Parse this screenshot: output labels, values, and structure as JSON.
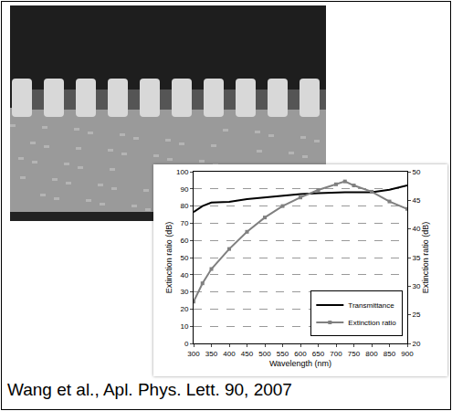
{
  "chart_data": {
    "type": "line",
    "xlabel": "Wavelength (nm)",
    "ylabel": "Extinction ratio (dB)",
    "y2label": "Extinction ratio (dB)",
    "xlim": [
      300,
      900
    ],
    "xticks": [
      300,
      350,
      400,
      450,
      500,
      550,
      600,
      650,
      700,
      750,
      800,
      850,
      900
    ],
    "ylim": [
      0,
      100
    ],
    "yticks": [
      0,
      10,
      20,
      30,
      40,
      50,
      60,
      70,
      80,
      90,
      100
    ],
    "y2lim": [
      20,
      50
    ],
    "y2ticks": [
      20,
      25,
      30,
      35,
      40,
      45,
      50
    ],
    "grid": true,
    "legend": "lower right",
    "series": [
      {
        "name": "Transmittance",
        "color": "#000000",
        "x": [
          300,
          325,
          350,
          400,
          450,
          500,
          550,
          600,
          650,
          700,
          725,
          750,
          800,
          850,
          900
        ],
        "values": [
          76.5,
          80,
          82,
          82.5,
          84,
          85,
          86,
          87,
          87.5,
          88,
          88,
          88,
          88,
          89.5,
          92
        ]
      },
      {
        "name": "Extinction ratio",
        "color": "#808080",
        "marker": "square",
        "axis": "y2",
        "x": [
          300,
          325,
          350,
          400,
          450,
          500,
          550,
          600,
          650,
          700,
          725,
          750,
          800,
          850,
          900
        ],
        "values": [
          27.3,
          30.5,
          33,
          36.5,
          39.5,
          42,
          44,
          45.5,
          46.8,
          47.8,
          48.3,
          47.6,
          46.5,
          44.8,
          43.5
        ]
      }
    ]
  },
  "caption": "Wang et al., Apl. Phys. Lett. 90, 2007"
}
